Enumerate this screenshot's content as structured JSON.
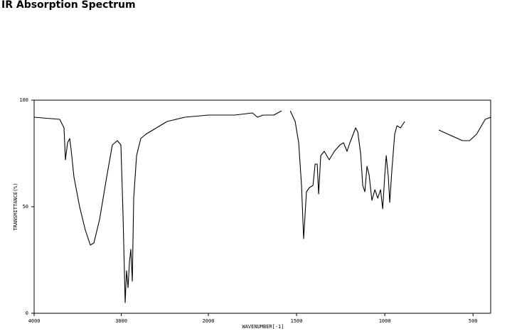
{
  "chart_data": {
    "type": "line",
    "title": "IR Absorption Spectrum",
    "x_label": "WAVENUMBER[-1]",
    "y_label": "TRANSMITTANCE(%)",
    "xlim": [
      4000,
      400
    ],
    "x_break": 2000,
    "ylim": [
      0,
      100
    ],
    "xticks": [
      4000,
      3000,
      2000,
      1500,
      1000,
      500
    ],
    "yticks": [
      0,
      50,
      100
    ],
    "color": "#000000",
    "x": [
      4000,
      3706,
      3657,
      3641,
      3616,
      3592,
      3576,
      3543,
      3478,
      3412,
      3355,
      3314,
      3249,
      3167,
      3102,
      3045,
      3004,
      2980,
      2955,
      2939,
      2922,
      2906,
      2890,
      2873,
      2857,
      2824,
      2776,
      2718,
      2637,
      2473,
      2269,
      2000,
      1851,
      1750,
      1722,
      1690,
      1629,
      1585,
      1560,
      1536,
      1508,
      1488,
      1472,
      1460,
      1444,
      1427,
      1407,
      1395,
      1383,
      1375,
      1363,
      1343,
      1315,
      1286,
      1254,
      1234,
      1214,
      1198,
      1165,
      1153,
      1137,
      1125,
      1113,
      1101,
      1089,
      1073,
      1056,
      1040,
      1024,
      1012,
      1000,
      992,
      980,
      972,
      960,
      944,
      931,
      911,
      887,
      790,
      694,
      641,
      560,
      520,
      480,
      431,
      400
    ],
    "values": [
      92,
      91,
      87,
      72,
      80,
      82,
      77,
      64,
      50,
      39,
      32,
      33,
      44,
      64,
      79,
      81,
      79,
      47,
      5,
      20,
      12,
      24,
      30,
      15,
      54,
      74,
      82,
      84,
      86,
      90,
      92,
      93,
      93,
      94,
      92,
      93,
      93,
      95,
      null,
      95,
      90,
      80,
      60,
      35,
      57,
      59,
      60,
      70,
      70,
      56,
      74,
      76,
      72,
      76,
      79,
      80,
      76,
      80,
      87,
      85,
      75,
      60,
      57,
      69,
      65,
      53,
      58,
      54,
      58,
      49,
      65,
      74,
      64,
      52,
      67,
      84,
      88,
      87,
      90,
      null,
      86,
      84,
      81,
      81,
      84,
      91,
      92
    ]
  }
}
